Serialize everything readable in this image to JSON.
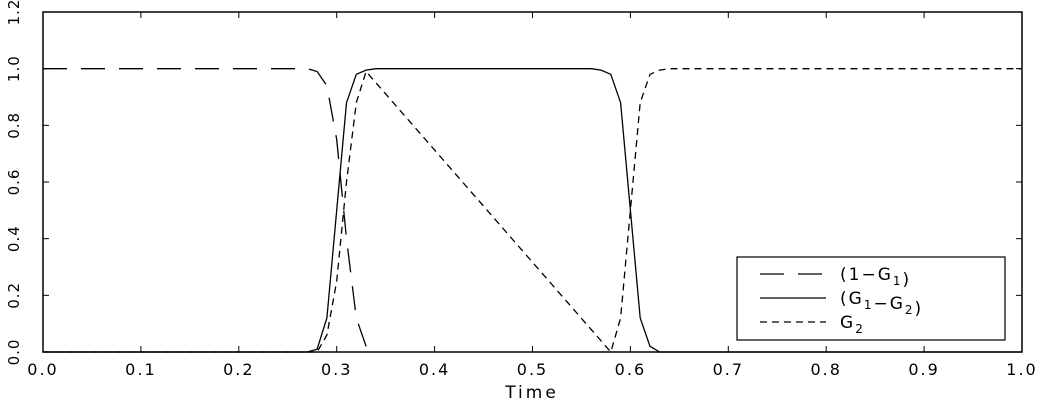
{
  "chart_data": {
    "type": "line",
    "xlabel": "Time",
    "ylabel": "",
    "xlim": [
      0.0,
      1.0
    ],
    "ylim": [
      0.0,
      1.2
    ],
    "x_ticks": [
      "0.0",
      "0.1",
      "0.2",
      "0.3",
      "0.4",
      "0.5",
      "0.6",
      "0.7",
      "0.8",
      "0.9",
      "1.0"
    ],
    "y_ticks": [
      "0.0",
      "0.2",
      "0.4",
      "0.6",
      "0.8",
      "1.0",
      "1.2"
    ],
    "grid": false,
    "legend_position": "bottom-right",
    "series": [
      {
        "name": "(1−G₁)",
        "label_main": "(1−G",
        "label_sub": "1",
        "label_tail": ")",
        "style": "long-dash",
        "x": [
          0.0,
          0.27,
          0.28,
          0.29,
          0.3,
          0.31,
          0.32,
          0.33,
          0.34
        ],
        "y": [
          1.0,
          1.0,
          0.99,
          0.94,
          0.75,
          0.4,
          0.12,
          0.02,
          0.0
        ]
      },
      {
        "name": "(G₁−G₂)",
        "label_main": "(G",
        "label_sub": "1",
        "label_mid": "−G",
        "label_sub2": "2",
        "label_tail": ")",
        "style": "solid",
        "x": [
          0.0,
          0.27,
          0.28,
          0.29,
          0.3,
          0.31,
          0.32,
          0.33,
          0.34,
          0.56,
          0.57,
          0.58,
          0.59,
          0.6,
          0.61,
          0.62,
          0.63,
          0.64,
          1.0
        ],
        "y": [
          0.0,
          0.0,
          0.01,
          0.12,
          0.5,
          0.88,
          0.98,
          0.995,
          1.0,
          1.0,
          0.995,
          0.98,
          0.88,
          0.5,
          0.12,
          0.02,
          0.0,
          0.0,
          0.0
        ]
      },
      {
        "name": "G₂",
        "label_main": "G",
        "label_sub": "2",
        "label_tail": "",
        "style": "short-dash",
        "x": [
          0.0,
          0.27,
          0.28,
          0.29,
          0.3,
          0.31,
          0.32,
          0.33,
          0.58,
          0.59,
          0.6,
          0.61,
          0.62,
          0.63,
          0.64,
          0.65,
          1.0
        ],
        "y": [
          0.0,
          0.0,
          0.0,
          0.06,
          0.25,
          0.6,
          0.88,
          0.99,
          0.0,
          0.12,
          0.5,
          0.88,
          0.98,
          0.995,
          1.0,
          1.0,
          1.0
        ]
      }
    ]
  }
}
